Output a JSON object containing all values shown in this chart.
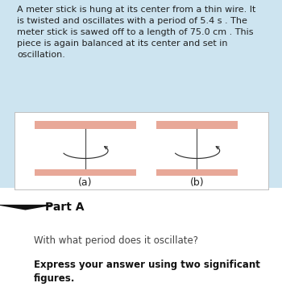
{
  "bg_blue": "#cde4f0",
  "bg_white": "#ffffff",
  "bg_gray_part": "#f0f0f0",
  "stick_color": "#e8a898",
  "wire_color": "#555555",
  "arrow_color": "#333333",
  "text_problem": "A meter stick is hung at its center from a thin wire. It\nis twisted and oscillates with a period of 5.4 s . The\nmeter stick is sawed off to a length of 75.0 cm . This\npiece is again balanced at its center and set in\noscillation.",
  "label_a": "(a)",
  "label_b": "(b)",
  "part_label": "Part A",
  "question": "With what period does it oscillate?",
  "instruction_bold": "Express your answer using two significant\nfigures.",
  "diagram_border": "#c0c0c0",
  "text_color": "#222222",
  "part_text_color": "#111111"
}
